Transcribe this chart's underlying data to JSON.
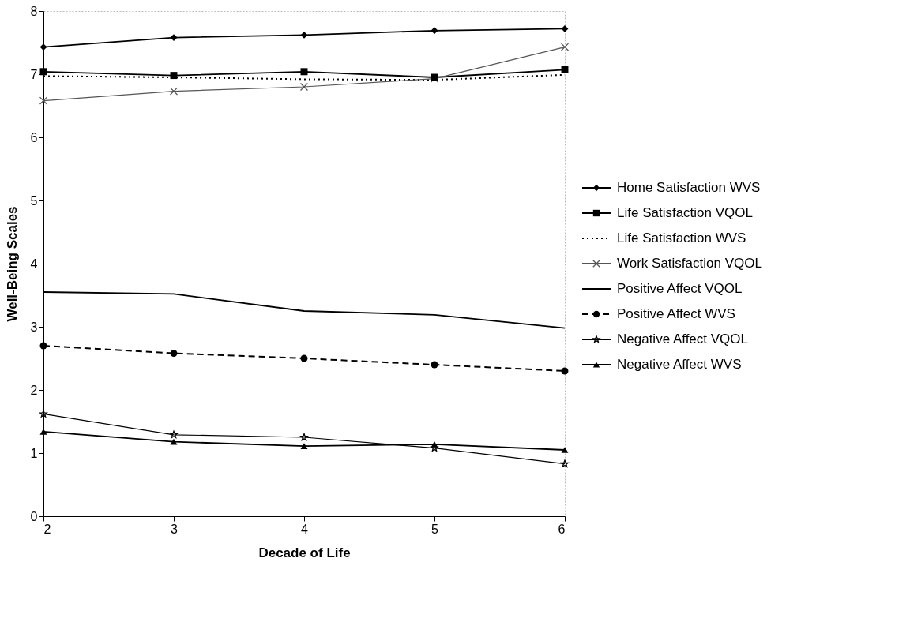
{
  "chart_data": {
    "type": "line",
    "xlabel": "Decade of Life",
    "ylabel": "Well-Being Scales",
    "x": [
      2,
      3,
      4,
      5,
      6
    ],
    "xlim": [
      2,
      6
    ],
    "xticks": [
      2,
      3,
      4,
      5,
      6
    ],
    "ylim": [
      0,
      8
    ],
    "yticks": [
      0,
      1,
      2,
      3,
      4,
      5,
      6,
      7,
      8
    ],
    "grid": false,
    "legend": "right",
    "series": [
      {
        "name": "Home Satisfaction WVS",
        "color": "#000000",
        "marker": "diamond",
        "line_style": "solid",
        "values": [
          7.43,
          7.58,
          7.62,
          7.69,
          7.72
        ]
      },
      {
        "name": "Life Satisfaction VQOL",
        "color": "#000000",
        "marker": "square",
        "line_style": "solid",
        "values": [
          7.04,
          6.98,
          7.04,
          6.95,
          7.07
        ]
      },
      {
        "name": "Life Satisfaction WVS",
        "color": "#000000",
        "marker": "none",
        "line_style": "dotted",
        "values": [
          6.97,
          6.95,
          6.92,
          6.91,
          6.99
        ]
      },
      {
        "name": "Work Satisfaction VQOL",
        "color": "#555555",
        "marker": "cross",
        "line_style": "solid",
        "values": [
          6.58,
          6.73,
          6.8,
          6.93,
          7.43
        ]
      },
      {
        "name": "Positive Affect VQOL",
        "color": "#000000",
        "marker": "none",
        "line_style": "solid",
        "values": [
          3.55,
          3.52,
          3.25,
          3.19,
          2.98
        ]
      },
      {
        "name": "Positive Affect WVS",
        "color": "#000000",
        "marker": "circle",
        "line_style": "dashed",
        "values": [
          2.7,
          2.58,
          2.5,
          2.4,
          2.3
        ]
      },
      {
        "name": "Negative Affect VQOL",
        "color": "#000000",
        "marker": "star",
        "line_style": "solid",
        "values": [
          1.62,
          1.29,
          1.25,
          1.08,
          0.83
        ]
      },
      {
        "name": "Negative Affect WVS",
        "color": "#000000",
        "marker": "triangle",
        "line_style": "solid",
        "values": [
          1.34,
          1.18,
          1.11,
          1.14,
          1.05
        ]
      }
    ]
  }
}
